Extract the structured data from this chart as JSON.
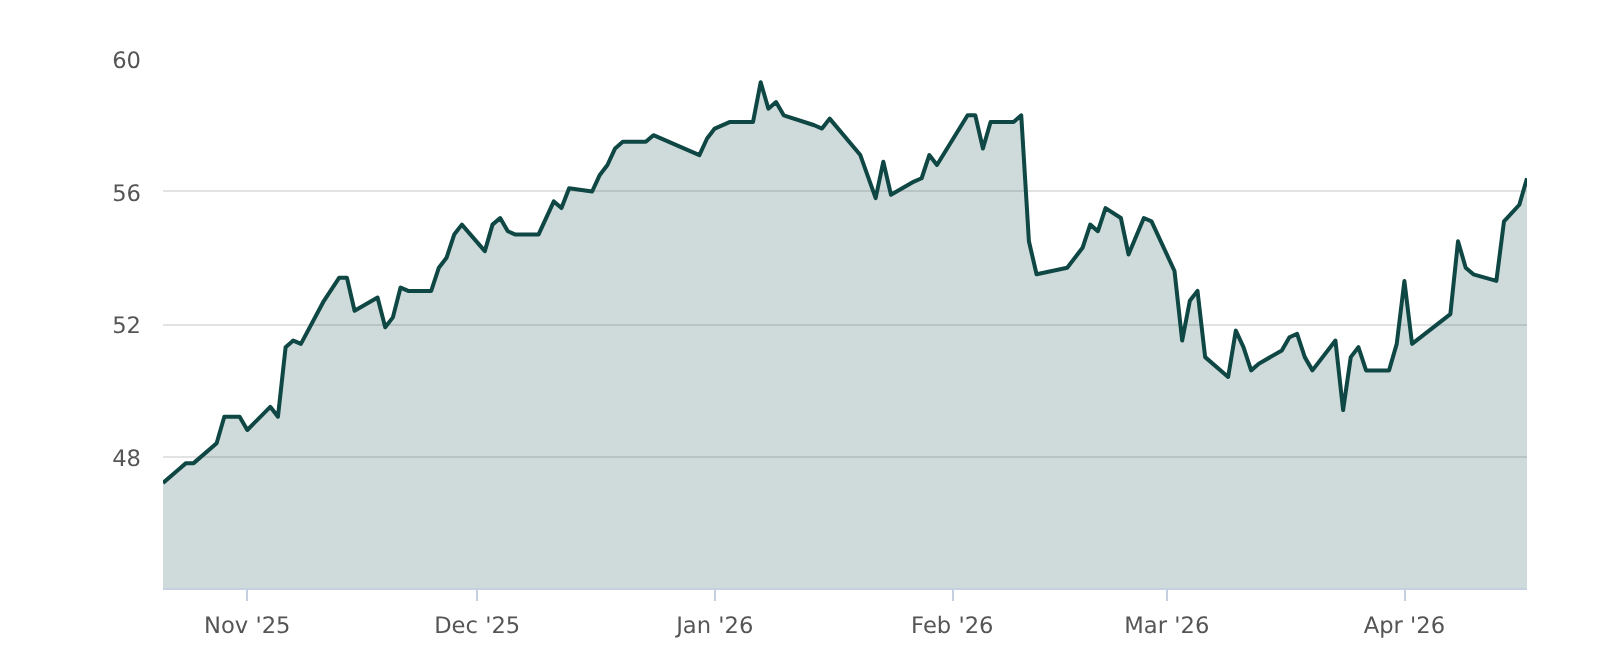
{
  "chart_data": {
    "type": "area",
    "x": [
      "2025-10-21",
      "2025-10-23",
      "2025-10-24",
      "2025-10-25",
      "2025-10-28",
      "2025-10-29",
      "2025-10-31",
      "2025-11-01",
      "2025-11-04",
      "2025-11-05",
      "2025-11-06",
      "2025-11-07",
      "2025-11-08",
      "2025-11-11",
      "2025-11-13",
      "2025-11-14",
      "2025-11-15",
      "2025-11-18",
      "2025-11-19",
      "2025-11-20",
      "2025-11-21",
      "2025-11-22",
      "2025-11-25",
      "2025-11-26",
      "2025-11-27",
      "2025-11-28",
      "2025-11-29",
      "2025-12-02",
      "2025-12-03",
      "2025-12-04",
      "2025-12-05",
      "2025-12-06",
      "2025-12-09",
      "2025-12-11",
      "2025-12-12",
      "2025-12-13",
      "2025-12-16",
      "2025-12-17",
      "2025-12-18",
      "2025-12-19",
      "2025-12-20",
      "2025-12-23",
      "2025-12-24",
      "2025-12-30",
      "2025-12-31",
      "2026-01-01",
      "2026-01-03",
      "2026-01-06",
      "2026-01-07",
      "2026-01-08",
      "2026-01-09",
      "2026-01-10",
      "2026-01-14",
      "2026-01-15",
      "2026-01-16",
      "2026-01-20",
      "2026-01-22",
      "2026-01-23",
      "2026-01-24",
      "2026-01-27",
      "2026-01-28",
      "2026-01-29",
      "2026-01-30",
      "2026-02-03",
      "2026-02-04",
      "2026-02-05",
      "2026-02-06",
      "2026-02-09",
      "2026-02-10",
      "2026-02-11",
      "2026-02-12",
      "2026-02-16",
      "2026-02-18",
      "2026-02-19",
      "2026-02-20",
      "2026-02-21",
      "2026-02-23",
      "2026-02-24",
      "2026-02-26",
      "2026-02-27",
      "2026-03-02",
      "2026-03-03",
      "2026-03-04",
      "2026-03-05",
      "2026-03-06",
      "2026-03-09",
      "2026-03-10",
      "2026-03-11",
      "2026-03-12",
      "2026-03-13",
      "2026-03-16",
      "2026-03-17",
      "2026-03-18",
      "2026-03-19",
      "2026-03-20",
      "2026-03-23",
      "2026-03-24",
      "2026-03-25",
      "2026-03-26",
      "2026-03-27",
      "2026-03-30",
      "2026-03-31",
      "2026-04-01",
      "2026-04-02",
      "2026-04-07",
      "2026-04-08",
      "2026-04-09",
      "2026-04-10",
      "2026-04-13",
      "2026-04-14",
      "2026-04-16",
      "2026-04-17"
    ],
    "series": [
      {
        "color": "#0e4744",
        "values": [
          47.2,
          47.6,
          47.8,
          47.8,
          48.4,
          49.2,
          49.2,
          48.8,
          49.5,
          49.2,
          51.3,
          51.5,
          51.4,
          52.7,
          53.4,
          53.4,
          52.4,
          52.8,
          51.9,
          52.2,
          53.1,
          53.0,
          53.0,
          53.7,
          54.0,
          54.7,
          55.0,
          54.2,
          55.0,
          55.2,
          54.8,
          54.7,
          54.7,
          55.7,
          55.5,
          56.1,
          56.0,
          56.5,
          56.8,
          57.3,
          57.5,
          57.5,
          57.7,
          57.1,
          57.6,
          57.9,
          58.1,
          58.1,
          59.3,
          58.5,
          58.7,
          58.3,
          58.0,
          57.9,
          58.2,
          57.1,
          55.8,
          56.9,
          55.9,
          56.3,
          56.4,
          57.1,
          56.8,
          58.3,
          58.3,
          57.3,
          58.1,
          58.1,
          58.3,
          54.5,
          53.5,
          53.7,
          54.3,
          55.0,
          54.8,
          55.5,
          55.2,
          54.1,
          55.2,
          55.1,
          53.6,
          51.5,
          52.7,
          53.0,
          51.0,
          50.4,
          51.8,
          51.3,
          50.6,
          50.8,
          51.2,
          51.6,
          51.7,
          51.0,
          50.6,
          51.5,
          49.4,
          51.0,
          51.3,
          50.6,
          50.6,
          51.4,
          53.3,
          51.4,
          52.3,
          54.5,
          53.7,
          53.5,
          53.3,
          55.1,
          55.6,
          56.4
        ]
      }
    ],
    "xlim": [
      "2025-10-21",
      "2026-04-17"
    ],
    "xticks": [
      {
        "value": "2025-11-01",
        "label": "Nov '25"
      },
      {
        "value": "2025-12-01",
        "label": "Dec '25"
      },
      {
        "value": "2026-01-01",
        "label": "Jan '26"
      },
      {
        "value": "2026-02-01",
        "label": "Feb '26"
      },
      {
        "value": "2026-03-01",
        "label": "Mar '26"
      },
      {
        "value": "2026-04-01",
        "label": "Apr '26"
      }
    ],
    "ylim": [
      44,
      60
    ],
    "yticks": [
      48,
      52,
      56,
      60
    ],
    "grid": "y"
  }
}
